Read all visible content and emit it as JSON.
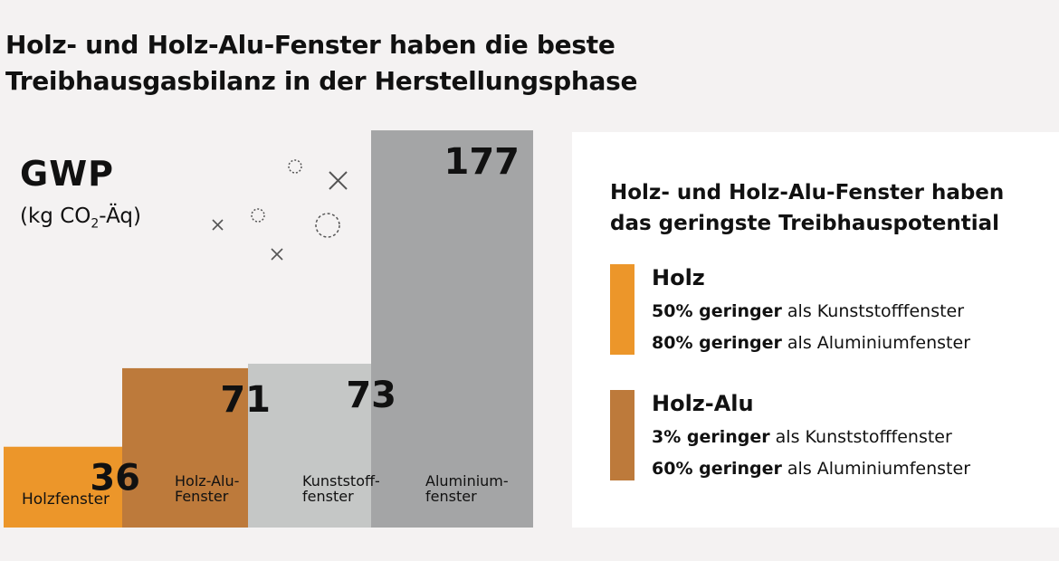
{
  "title": {
    "line1": "Holz- und Holz-Alu-Fenster haben die beste",
    "line2": "Treibhausgasbilanz in der Herstellungsphase"
  },
  "gwp": {
    "label": "GWP",
    "unit_pre": "(kg CO",
    "unit_sub": "2",
    "unit_post": "-Äq)"
  },
  "chart_data": {
    "type": "bar",
    "categories": [
      "Holzfenster",
      "Holz-Alu-Fenster",
      "Kunststofffenster",
      "Aluminiumfenster"
    ],
    "category_label_lines": [
      [
        "Holzfenster"
      ],
      [
        "Holz-Alu-",
        "Fenster"
      ],
      [
        "Kunststoff-",
        "fenster"
      ],
      [
        "Aluminium-",
        "fenster"
      ]
    ],
    "values": [
      36,
      71,
      73,
      177
    ],
    "value_labels": [
      "36",
      "71",
      "73",
      "177"
    ],
    "colors": [
      "#ec962a",
      "#bd7a3b",
      "#c5c7c6",
      "#a4a5a6"
    ],
    "ylabel": "GWP (kg CO2-Äq)",
    "grid": false,
    "legend": "none"
  },
  "panel": {
    "heading_line1": "Holz- und Holz-Alu-Fenster haben",
    "heading_line2": "das geringste Treibhauspotential",
    "items": [
      {
        "name": "Holz",
        "color": "#ec962a",
        "lines": [
          {
            "bold": "50% geringer",
            "rest": " als Kunststofffenster"
          },
          {
            "bold": "80% geringer",
            "rest": " als Aluminiumfenster"
          }
        ]
      },
      {
        "name": "Holz-Alu",
        "color": "#bd7a3b",
        "lines": [
          {
            "bold": "3% geringer",
            "rest": " als Kunststofffenster"
          },
          {
            "bold": "60% geringer",
            "rest": " als Aluminiumfenster"
          }
        ]
      }
    ]
  }
}
